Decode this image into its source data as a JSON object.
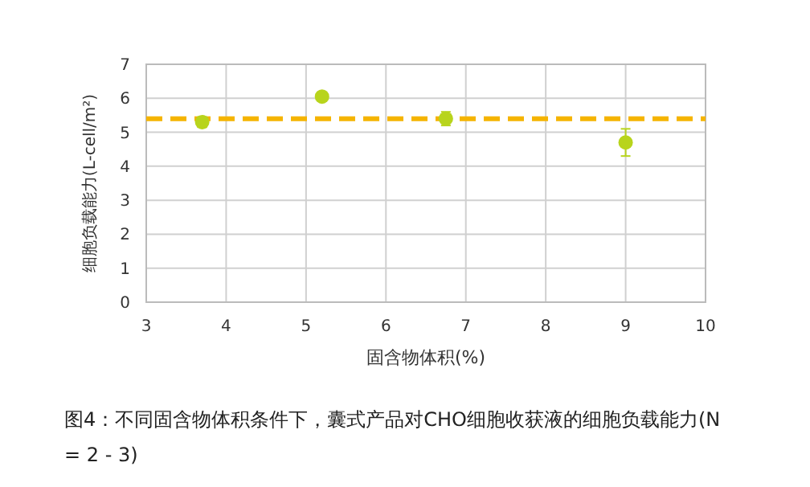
{
  "chart_data": {
    "type": "scatter",
    "xlabel": "固含物体积(%)",
    "ylabel": "细胞负载能力(L-cell/m²)",
    "x": [
      3.7,
      5.2,
      6.75,
      9
    ],
    "values": [
      5.3,
      6.05,
      5.4,
      4.7
    ],
    "errors": [
      0.15,
      null,
      0.2,
      [
        4.3,
        5.1
      ]
    ],
    "color": "#b8d41c",
    "marker": "circle",
    "grid": true,
    "xlim": [
      3,
      10
    ],
    "xticks": [
      3,
      4,
      5,
      6,
      7,
      8,
      9,
      10
    ],
    "ylim": [
      0,
      7
    ],
    "yticks": [
      0,
      1,
      2,
      3,
      4,
      5,
      6,
      7
    ],
    "ref_lines": [
      {
        "axis": "y",
        "value": 5.4,
        "color": "#f5b400",
        "line_style": "dashed"
      }
    ],
    "annotations": [
      "图4：不同固含物体积条件下，囊式产品对CHO细胞收获液的细胞负载能力(N = 2 - 3)"
    ]
  }
}
